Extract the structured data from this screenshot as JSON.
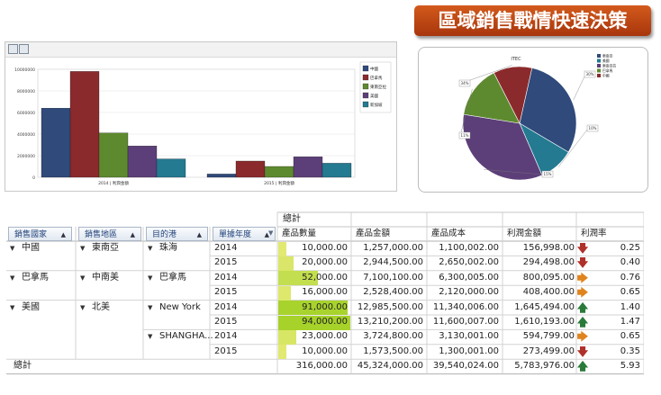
{
  "banner": {
    "title": "區域銷售戰情快速決策"
  },
  "bar_chart": {
    "y_ticks": [
      "10000000",
      "8000000",
      "6000000",
      "4000000",
      "2000000",
      "0"
    ],
    "group_labels": [
      "2014 | 利潤金額",
      "2015 | 利潤金額"
    ],
    "legend": [
      "中國",
      "巴拿馬",
      "東南亞拉",
      "美國",
      "新加坡"
    ],
    "colors": [
      "#2f4a7b",
      "#8b2a2c",
      "#5e8a2f",
      "#5c3f79",
      "#237a91"
    ]
  },
  "pie_chart": {
    "title": "ITEC",
    "legend": [
      "東南亞",
      "美國",
      "東南亞拉",
      "巴拿馬",
      "中國"
    ],
    "slice_colors": [
      "#2f4a7b",
      "#237a91",
      "#5c3f79",
      "#5e8a2f",
      "#8b2a2c"
    ],
    "callouts": [
      "30%",
      "10%",
      "15%",
      "11%",
      "34%"
    ]
  },
  "chart_data": [
    {
      "type": "bar",
      "categories": [
        "2014 | 利潤金額",
        "2015 | 利潤金額"
      ],
      "series": [
        {
          "name": "中國",
          "values": [
            6400000,
            300000
          ]
        },
        {
          "name": "巴拿馬",
          "values": [
            9800000,
            1500000
          ]
        },
        {
          "name": "東南亞拉",
          "values": [
            4100000,
            1000000
          ]
        },
        {
          "name": "美國",
          "values": [
            2900000,
            1900000
          ]
        },
        {
          "name": "新加坡",
          "values": [
            1700000,
            1300000
          ]
        }
      ],
      "ylim": [
        0,
        10000000
      ],
      "legend_position": "right"
    },
    {
      "type": "pie",
      "title": "ITEC",
      "values": [
        30,
        10,
        34,
        15,
        11
      ],
      "labels": [
        "東南亞",
        "美國",
        "東南亞拉",
        "巴拿馬",
        "中國"
      ]
    }
  ],
  "pivot": {
    "top_header": "總計",
    "field_buttons": [
      "銷售國家",
      "銷售地區",
      "目的港",
      "單據年度"
    ],
    "measure_headers": [
      "產品數量",
      "產品金額",
      "產品成本",
      "利潤金額",
      "利潤率"
    ],
    "rows": [
      {
        "country": "中國",
        "region": "東南亞",
        "port": "珠海",
        "year": "2014",
        "qty": "10,000.00",
        "amount": "1,257,000.00",
        "cost": "1,100,002.00",
        "profit": "156,998.00",
        "rate": "0.25",
        "trend": "down",
        "qty_val": 10000
      },
      {
        "country": "",
        "region": "",
        "port": "",
        "year": "2015",
        "qty": "20,000.00",
        "amount": "2,944,500.00",
        "cost": "2,650,002.00",
        "profit": "294,498.00",
        "rate": "0.40",
        "trend": "down",
        "qty_val": 20000
      },
      {
        "country": "巴拿馬",
        "region": "中南美",
        "port": "巴拿馬",
        "year": "2014",
        "qty": "52,000.00",
        "amount": "7,100,100.00",
        "cost": "6,300,005.00",
        "profit": "800,095.00",
        "rate": "0.76",
        "trend": "right",
        "qty_val": 52000
      },
      {
        "country": "",
        "region": "",
        "port": "",
        "year": "2015",
        "qty": "16,000.00",
        "amount": "2,528,400.00",
        "cost": "2,120,000.00",
        "profit": "408,400.00",
        "rate": "0.65",
        "trend": "right",
        "qty_val": 16000
      },
      {
        "country": "美國",
        "region": "北美",
        "port": "New York",
        "year": "2014",
        "qty": "91,000.00",
        "amount": "12,985,500.00",
        "cost": "11,340,006.00",
        "profit": "1,645,494.00",
        "rate": "1.40",
        "trend": "up",
        "qty_val": 91000
      },
      {
        "country": "",
        "region": "",
        "port": "",
        "year": "2015",
        "qty": "94,000.00",
        "amount": "13,210,200.00",
        "cost": "11,600,007.00",
        "profit": "1,610,193.00",
        "rate": "1.47",
        "trend": "up",
        "qty_val": 94000
      },
      {
        "country": "",
        "region": "",
        "port": "SHANGHA...",
        "year": "2014",
        "qty": "23,000.00",
        "amount": "3,724,800.00",
        "cost": "3,130,001.00",
        "profit": "594,799.00",
        "rate": "0.65",
        "trend": "right",
        "qty_val": 23000
      },
      {
        "country": "",
        "region": "",
        "port": "",
        "year": "2015",
        "qty": "10,000.00",
        "amount": "1,573,500.00",
        "cost": "1,300,001.00",
        "profit": "273,499.00",
        "rate": "0.35",
        "trend": "down",
        "qty_val": 10000
      }
    ],
    "total": {
      "label": "總計",
      "qty": "316,000.00",
      "amount": "45,324,000.00",
      "cost": "39,540,024.00",
      "profit": "5,783,976.00",
      "rate": "5.93",
      "trend": "up"
    }
  }
}
